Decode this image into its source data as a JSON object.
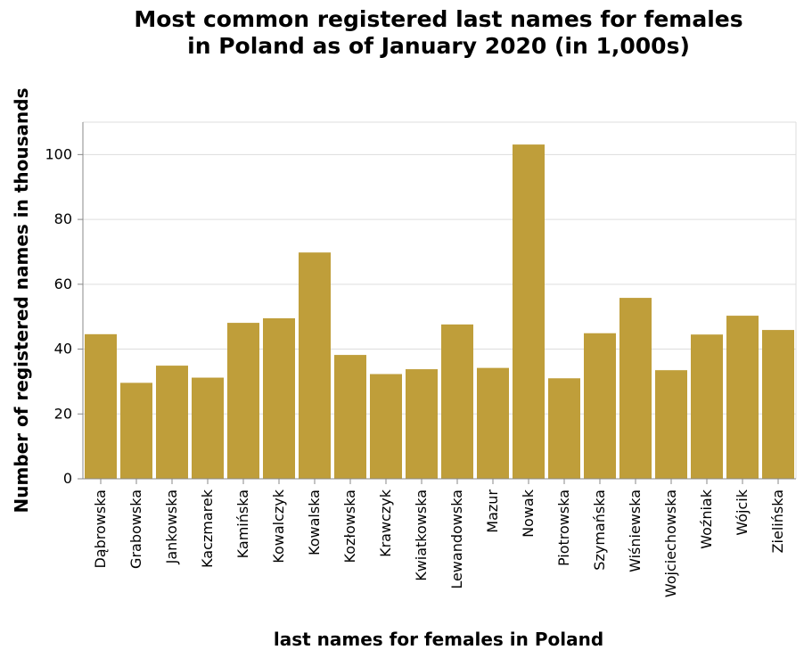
{
  "chart_data": {
    "type": "bar",
    "title_lines": [
      "Most common registered last names for females",
      "in Poland as of January 2020 (in 1,000s)"
    ],
    "xlabel": "last names for females in Poland",
    "ylabel": "Number of registered names in thousands",
    "categories": [
      "Dąbrowska",
      "Grabowska",
      "Jankowska",
      "Kaczmarek",
      "Kamińska",
      "Kowalczyk",
      "Kowalska",
      "Kozłowska",
      "Krawczyk",
      "Kwiatkowska",
      "Lewandowska",
      "Mazur",
      "Nowak",
      "Piotrowska",
      "Szymańska",
      "Wiśniewska",
      "Wojciechowska",
      "Woźniak",
      "Wójcik",
      "Zielińska"
    ],
    "values": [
      44.6,
      29.6,
      34.9,
      31.2,
      48.1,
      49.5,
      69.8,
      38.2,
      32.3,
      33.8,
      47.6,
      34.2,
      103.1,
      31.0,
      44.9,
      55.8,
      33.5,
      44.5,
      50.3,
      45.9
    ],
    "ylim": [
      0,
      110
    ],
    "yticks": [
      0,
      20,
      40,
      60,
      80,
      100
    ],
    "grid": true,
    "bar_color": "#bf9e3a"
  }
}
